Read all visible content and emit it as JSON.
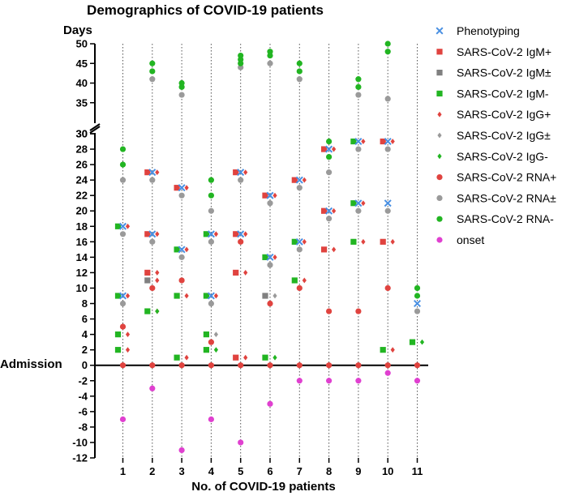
{
  "chart_data": {
    "type": "scatter",
    "title": "Demographics of COVID-19 patients",
    "xlabel": "No. of COVID-19 patients",
    "ylabel": "Days",
    "baseline_label": "Admission",
    "categories": [
      "1",
      "2",
      "3",
      "4",
      "5",
      "6",
      "7",
      "8",
      "9",
      "10",
      "11"
    ],
    "ylim_lower": [
      -12,
      30
    ],
    "ylim_upper": [
      30,
      50
    ],
    "yticks_lower": [
      -12,
      -10,
      -8,
      -6,
      -4,
      -2,
      0,
      2,
      4,
      6,
      8,
      10,
      12,
      14,
      16,
      18,
      20,
      22,
      24,
      26,
      28,
      30
    ],
    "yticks_upper": [
      30,
      35,
      40,
      45,
      50
    ],
    "axis_break": true,
    "grid": "vertical dotted lines at each patient",
    "legend_position": "right",
    "series": [
      {
        "name": "Phenotyping",
        "marker": "x",
        "color": "#4a90e2",
        "offset": 0,
        "points": [
          [
            1,
            9
          ],
          [
            1,
            18
          ],
          [
            2,
            17
          ],
          [
            2,
            25
          ],
          [
            3,
            15
          ],
          [
            3,
            23
          ],
          [
            4,
            9
          ],
          [
            4,
            17
          ],
          [
            5,
            17
          ],
          [
            5,
            25
          ],
          [
            6,
            14
          ],
          [
            6,
            22
          ],
          [
            7,
            16
          ],
          [
            7,
            24
          ],
          [
            8,
            20
          ],
          [
            8,
            28
          ],
          [
            9,
            21
          ],
          [
            9,
            29
          ],
          [
            10,
            21
          ],
          [
            10,
            29
          ],
          [
            11,
            8
          ]
        ]
      },
      {
        "name": "SARS-CoV-2 IgM+",
        "marker": "square",
        "color": "#e0433f",
        "offset": -1,
        "points": [
          [
            2,
            12
          ],
          [
            2,
            17
          ],
          [
            2,
            25
          ],
          [
            3,
            23
          ],
          [
            5,
            1
          ],
          [
            5,
            12
          ],
          [
            5,
            17
          ],
          [
            5,
            25
          ],
          [
            6,
            22
          ],
          [
            7,
            24
          ],
          [
            8,
            15
          ],
          [
            8,
            20
          ],
          [
            8,
            28
          ],
          [
            10,
            16
          ],
          [
            10,
            29
          ]
        ]
      },
      {
        "name": "SARS-CoV-2 IgM±",
        "marker": "square",
        "color": "#808080",
        "offset": -1,
        "points": [
          [
            2,
            11
          ],
          [
            6,
            9
          ]
        ]
      },
      {
        "name": "SARS-CoV-2 IgM-",
        "marker": "square",
        "color": "#22b522",
        "offset": -1,
        "points": [
          [
            1,
            2
          ],
          [
            1,
            4
          ],
          [
            1,
            9
          ],
          [
            1,
            18
          ],
          [
            2,
            7
          ],
          [
            3,
            1
          ],
          [
            3,
            9
          ],
          [
            3,
            15
          ],
          [
            4,
            2
          ],
          [
            4,
            4
          ],
          [
            4,
            9
          ],
          [
            4,
            17
          ],
          [
            6,
            1
          ],
          [
            6,
            14
          ],
          [
            7,
            11
          ],
          [
            7,
            16
          ],
          [
            9,
            16
          ],
          [
            9,
            21
          ],
          [
            9,
            29
          ],
          [
            10,
            2
          ],
          [
            11,
            3
          ]
        ]
      },
      {
        "name": "SARS-CoV-2 IgG+",
        "marker": "diamond",
        "color": "#e0433f",
        "offset": 1,
        "points": [
          [
            1,
            2
          ],
          [
            1,
            4
          ],
          [
            1,
            9
          ],
          [
            1,
            18
          ],
          [
            2,
            7
          ],
          [
            2,
            11
          ],
          [
            2,
            12
          ],
          [
            2,
            17
          ],
          [
            2,
            25
          ],
          [
            3,
            1
          ],
          [
            3,
            9
          ],
          [
            3,
            15
          ],
          [
            3,
            23
          ],
          [
            4,
            9
          ],
          [
            4,
            17
          ],
          [
            5,
            1
          ],
          [
            5,
            12
          ],
          [
            5,
            17
          ],
          [
            5,
            25
          ],
          [
            6,
            14
          ],
          [
            6,
            22
          ],
          [
            7,
            11
          ],
          [
            7,
            16
          ],
          [
            7,
            24
          ],
          [
            8,
            15
          ],
          [
            8,
            20
          ],
          [
            8,
            28
          ],
          [
            9,
            16
          ],
          [
            9,
            21
          ],
          [
            9,
            29
          ],
          [
            10,
            2
          ],
          [
            10,
            16
          ],
          [
            10,
            29
          ]
        ]
      },
      {
        "name": "SARS-CoV-2 IgG±",
        "marker": "diamond",
        "color": "#9a9a9a",
        "offset": 1,
        "points": [
          [
            4,
            4
          ],
          [
            6,
            9
          ]
        ]
      },
      {
        "name": "SARS-CoV-2 IgG-",
        "marker": "diamond",
        "color": "#22b522",
        "offset": 1,
        "points": [
          [
            2,
            7
          ],
          [
            4,
            2
          ],
          [
            6,
            1
          ],
          [
            11,
            3
          ]
        ]
      },
      {
        "name": "SARS-CoV-2 RNA+",
        "marker": "circle",
        "color": "#e0433f",
        "offset": 0,
        "points": [
          [
            1,
            0
          ],
          [
            1,
            5
          ],
          [
            2,
            0
          ],
          [
            2,
            10
          ],
          [
            3,
            0
          ],
          [
            3,
            11
          ],
          [
            4,
            0
          ],
          [
            4,
            3
          ],
          [
            5,
            0
          ],
          [
            5,
            16
          ],
          [
            6,
            0
          ],
          [
            6,
            8
          ],
          [
            7,
            0
          ],
          [
            7,
            10
          ],
          [
            8,
            0
          ],
          [
            8,
            7
          ],
          [
            9,
            0
          ],
          [
            9,
            7
          ],
          [
            10,
            0
          ],
          [
            10,
            10
          ],
          [
            11,
            0
          ]
        ]
      },
      {
        "name": "SARS-CoV-2 RNA±",
        "marker": "circle",
        "color": "#9a9a9a",
        "offset": 0,
        "points": [
          [
            1,
            8
          ],
          [
            1,
            17
          ],
          [
            1,
            24
          ],
          [
            2,
            16
          ],
          [
            2,
            24
          ],
          [
            2,
            41
          ],
          [
            3,
            14
          ],
          [
            3,
            22
          ],
          [
            3,
            37
          ],
          [
            4,
            8
          ],
          [
            4,
            16
          ],
          [
            4,
            20
          ],
          [
            5,
            24
          ],
          [
            5,
            44
          ],
          [
            6,
            13
          ],
          [
            6,
            21
          ],
          [
            6,
            45
          ],
          [
            7,
            15
          ],
          [
            7,
            23
          ],
          [
            7,
            41
          ],
          [
            8,
            19
          ],
          [
            8,
            25
          ],
          [
            9,
            20
          ],
          [
            9,
            28
          ],
          [
            9,
            37
          ],
          [
            10,
            20
          ],
          [
            10,
            28
          ],
          [
            10,
            36
          ],
          [
            11,
            7
          ]
        ]
      },
      {
        "name": "SARS-CoV-2 RNA-",
        "marker": "circle",
        "color": "#22b522",
        "offset": 0,
        "points": [
          [
            1,
            26
          ],
          [
            1,
            28
          ],
          [
            2,
            43
          ],
          [
            2,
            45
          ],
          [
            3,
            39
          ],
          [
            3,
            40
          ],
          [
            4,
            22
          ],
          [
            4,
            24
          ],
          [
            5,
            45
          ],
          [
            5,
            46
          ],
          [
            5,
            47
          ],
          [
            6,
            47
          ],
          [
            6,
            48
          ],
          [
            7,
            43
          ],
          [
            7,
            45
          ],
          [
            8,
            27
          ],
          [
            8,
            29
          ],
          [
            9,
            39
          ],
          [
            9,
            41
          ],
          [
            10,
            48
          ],
          [
            10,
            50
          ],
          [
            11,
            9
          ],
          [
            11,
            10
          ]
        ]
      },
      {
        "name": "onset",
        "marker": "circle",
        "color": "#e040d0",
        "offset": 0,
        "points": [
          [
            1,
            -7
          ],
          [
            2,
            -3
          ],
          [
            3,
            -11
          ],
          [
            4,
            -7
          ],
          [
            5,
            -10
          ],
          [
            6,
            -5
          ],
          [
            7,
            -2
          ],
          [
            8,
            -2
          ],
          [
            9,
            -2
          ],
          [
            10,
            -1
          ],
          [
            11,
            -2
          ]
        ]
      }
    ]
  }
}
